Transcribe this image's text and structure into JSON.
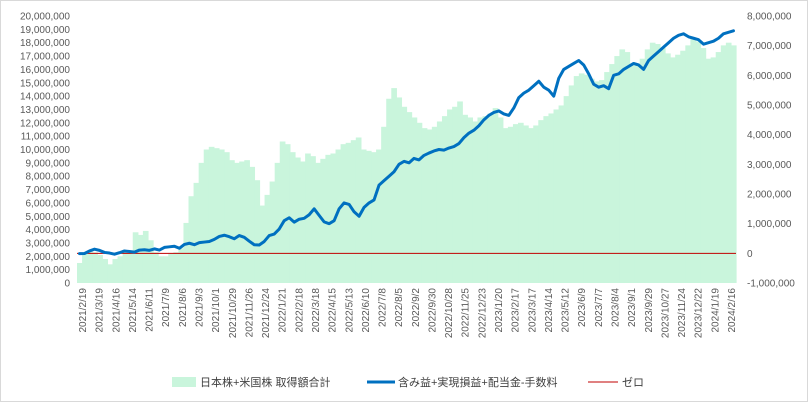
{
  "chart_data": {
    "type": "bar+line",
    "left_axis": {
      "min": 0,
      "max": 20000000,
      "step": 1000000,
      "tick_labels": [
        "0",
        "1,000,000",
        "2,000,000",
        "3,000,000",
        "4,000,000",
        "5,000,000",
        "6,000,000",
        "7,000,000",
        "8,000,000",
        "9,000,000",
        "10,000,000",
        "11,000,000",
        "12,000,000",
        "13,000,000",
        "14,000,000",
        "15,000,000",
        "16,000,000",
        "17,000,000",
        "18,000,000",
        "19,000,000",
        "20,000,000"
      ]
    },
    "right_axis": {
      "min": -1000000,
      "max": 8000000,
      "step": 1000000,
      "tick_labels": [
        "-1,000,000",
        "0",
        "1,000,000",
        "2,000,000",
        "3,000,000",
        "4,000,000",
        "5,000,000",
        "6,000,000",
        "7,000,000",
        "8,000,000"
      ]
    },
    "x_labels": [
      "2021/2/19",
      "2021/3/19",
      "2021/4/16",
      "2021/5/14",
      "2021/6/11",
      "2021/7/9",
      "2021/8/6",
      "2021/9/3",
      "2021/10/1",
      "2021/10/29",
      "2021/11/26",
      "2021/12/24",
      "2022/1/21",
      "2022/2/18",
      "2022/3/18",
      "2022/4/15",
      "2022/5/13",
      "2022/6/10",
      "2022/7/8",
      "2022/8/5",
      "2022/9/2",
      "2022/9/30",
      "2022/10/28",
      "2022/11/25",
      "2022/12/23",
      "2023/1/20",
      "2023/2/17",
      "2023/3/17",
      "2023/4/14",
      "2023/5/12",
      "2023/6/9",
      "2023/7/7",
      "2023/8/4",
      "2023/9/1",
      "2023/9/29",
      "2023/10/27",
      "2023/11/24",
      "2023/12/22",
      "2024/1/19",
      "2024/2/16"
    ],
    "series": [
      {
        "name": "日本株+米国株 取得額合計",
        "type": "area",
        "axis": "left",
        "color": "#c9f5dc",
        "values": [
          1500000,
          2200000,
          2400000,
          2300000,
          2100000,
          1800000,
          1400000,
          1800000,
          2000000,
          2300000,
          2200000,
          3800000,
          3600000,
          3900000,
          3200000,
          2300000,
          2000000,
          2000000,
          2200000,
          2300000,
          2600000,
          4500000,
          6500000,
          7500000,
          9000000,
          10000000,
          10200000,
          10100000,
          10000000,
          9800000,
          9200000,
          9000000,
          9100000,
          9200000,
          8700000,
          7700000,
          5800000,
          6600000,
          7600000,
          9000000,
          10600000,
          10400000,
          9800000,
          9400000,
          9100000,
          9700000,
          9500000,
          9000000,
          9300000,
          9600000,
          9700000,
          10000000,
          10400000,
          10500000,
          10700000,
          10900000,
          10000000,
          9900000,
          9800000,
          10000000,
          11700000,
          13800000,
          14600000,
          13900000,
          13200000,
          12800000,
          12400000,
          12000000,
          11600000,
          11500000,
          11700000,
          12100000,
          12500000,
          13000000,
          13200000,
          13600000,
          12600000,
          12400000,
          12100000,
          12400000,
          12500000,
          12700000,
          13100000,
          12400000,
          11600000,
          11700000,
          11900000,
          12000000,
          11800000,
          11600000,
          11800000,
          12200000,
          12500000,
          12700000,
          13000000,
          13300000,
          14000000,
          14800000,
          15500000,
          15700000,
          15600000,
          15300000,
          15100000,
          15200000,
          15800000,
          16400000,
          17000000,
          17500000,
          17300000,
          16400000,
          16300000,
          16800000,
          17500000,
          18000000,
          17900000,
          17600000,
          17200000,
          16900000,
          17100000,
          17400000,
          17800000,
          18300000,
          18100000,
          17600000,
          16800000,
          16900000,
          17300000,
          17800000,
          18000000,
          17800000
        ]
      },
      {
        "name": "含み益+実現損益+配当金-手数料",
        "type": "line",
        "axis": "right",
        "color": "#0070c0",
        "values": [
          -10000,
          -5000,
          80000,
          140000,
          100000,
          30000,
          10000,
          -30000,
          20000,
          80000,
          60000,
          40000,
          110000,
          120000,
          100000,
          150000,
          110000,
          200000,
          220000,
          240000,
          170000,
          300000,
          340000,
          290000,
          360000,
          380000,
          400000,
          470000,
          570000,
          610000,
          560000,
          490000,
          600000,
          540000,
          410000,
          290000,
          280000,
          400000,
          600000,
          650000,
          820000,
          1100000,
          1200000,
          1050000,
          1150000,
          1180000,
          1300000,
          1500000,
          1280000,
          1060000,
          1000000,
          1100000,
          1500000,
          1700000,
          1650000,
          1400000,
          1250000,
          1550000,
          1700000,
          1800000,
          2300000,
          2450000,
          2600000,
          2750000,
          3000000,
          3100000,
          3050000,
          3200000,
          3150000,
          3300000,
          3380000,
          3450000,
          3500000,
          3480000,
          3550000,
          3600000,
          3700000,
          3900000,
          4050000,
          4150000,
          4300000,
          4500000,
          4650000,
          4750000,
          4800000,
          4700000,
          4650000,
          4900000,
          5250000,
          5400000,
          5500000,
          5650000,
          5800000,
          5600000,
          5500000,
          5300000,
          5900000,
          6200000,
          6300000,
          6400000,
          6500000,
          6350000,
          6050000,
          5700000,
          5600000,
          5650000,
          5550000,
          6000000,
          6050000,
          6200000,
          6300000,
          6400000,
          6350000,
          6200000,
          6500000,
          6650000,
          6800000,
          6950000,
          7100000,
          7250000,
          7350000,
          7400000,
          7300000,
          7250000,
          7200000,
          7050000,
          7100000,
          7150000,
          7250000,
          7400000,
          7450000,
          7500000
        ]
      },
      {
        "name": "ゼロ",
        "type": "line",
        "axis": "right",
        "color": "#c00000",
        "values": [
          0
        ]
      }
    ],
    "legend_position": "bottom",
    "grid": false
  }
}
